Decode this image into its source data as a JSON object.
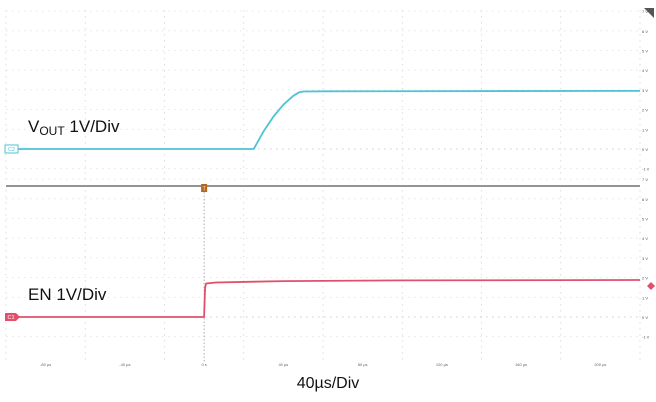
{
  "chart_data": [
    {
      "type": "line",
      "channel": "C2",
      "label": {
        "main": "V",
        "sub": "OUT",
        "rest": " 1V/Div"
      },
      "color": "#4ec3d6",
      "x_unit": "µs",
      "xlim": [
        -100,
        220
      ],
      "ylim": [
        -1.5,
        7.5
      ],
      "y_tick_labels": [
        "7 V",
        "6 V",
        "5 V",
        "4 V",
        "3 V",
        "2 V",
        "1 V",
        "0 V",
        "-1 V"
      ],
      "y_tick_values": [
        7,
        6,
        5,
        4,
        3,
        2,
        1,
        0,
        -1
      ],
      "x": [
        -100,
        25,
        30,
        35,
        40,
        45,
        48,
        50,
        60,
        220
      ],
      "y": [
        0,
        0,
        0.9,
        1.65,
        2.25,
        2.7,
        2.88,
        2.92,
        2.93,
        2.95
      ]
    },
    {
      "type": "line",
      "channel": "C1",
      "label": {
        "main": "EN 1V/Div"
      },
      "color": "#e0506b",
      "x_unit": "µs",
      "xlim": [
        -100,
        220
      ],
      "ylim": [
        -1.5,
        7.5
      ],
      "y_tick_labels": [
        "7 V",
        "6 V",
        "5 V",
        "4 V",
        "3 V",
        "2 V",
        "1 V",
        "0 V",
        "-1 V"
      ],
      "y_tick_values": [
        7,
        6,
        5,
        4,
        3,
        2,
        1,
        0,
        -1
      ],
      "x": [
        -100,
        0,
        0.5,
        1,
        6,
        40,
        100,
        220
      ],
      "y": [
        0,
        0,
        1.5,
        1.7,
        1.75,
        1.82,
        1.86,
        1.88
      ]
    }
  ],
  "x_tick_labels": [
    "-80 µs",
    "-40 µs",
    "0 s",
    "40 µs",
    "80 µs",
    "120 µs",
    "160 µs",
    "200 µs"
  ],
  "x_tick_values": [
    -80,
    -40,
    0,
    40,
    80,
    120,
    160,
    200
  ],
  "trigger_marker": "T",
  "timebase": "40µs/Div",
  "grid": true
}
